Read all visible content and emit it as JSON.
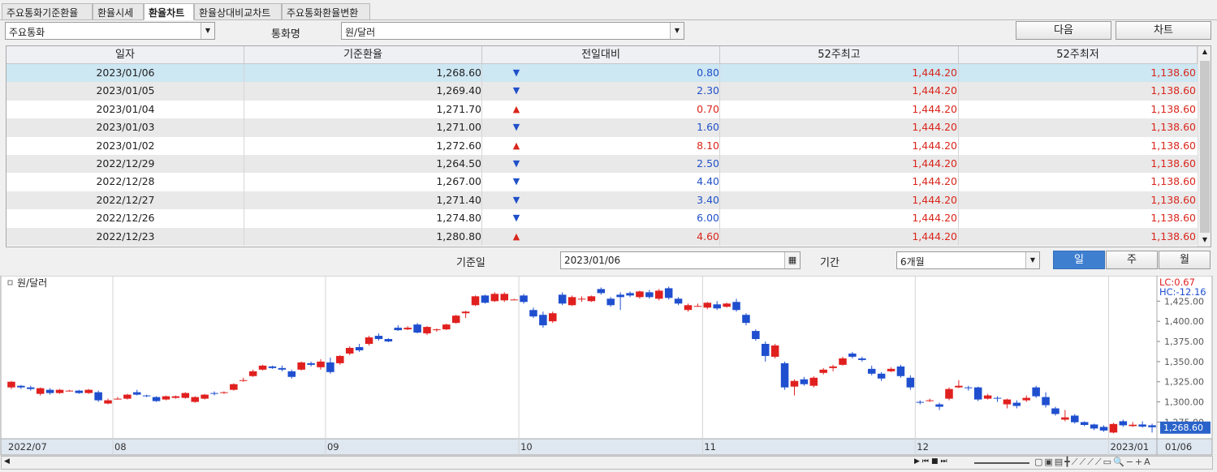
{
  "tabs": [
    "주요통화기준환율",
    "환율시세",
    "환율차트",
    "환율상대비교차트",
    "주요통화환율변환"
  ],
  "active_tab": 2,
  "toolbar": {
    "group": "주요통화",
    "currency_label": "통화명",
    "currency": "원/달러",
    "next_button": "다음",
    "chart_button": "차트"
  },
  "table": {
    "columns": [
      "일자",
      "기준환율",
      "전일대비",
      "52주최고",
      "52주최저"
    ],
    "change_colors": {
      "▲": "#d9261c",
      "▼": "#2050c8"
    },
    "rows": [
      [
        "2023/01/06",
        "1,268.60",
        "▼",
        "0.80",
        "1,444.20",
        "1,138.60"
      ],
      [
        "2023/01/05",
        "1,269.40",
        "▼",
        "2.30",
        "1,444.20",
        "1,138.60"
      ],
      [
        "2023/01/04",
        "1,271.70",
        "▲",
        "0.70",
        "1,444.20",
        "1,138.60"
      ],
      [
        "2023/01/03",
        "1,271.00",
        "▼",
        "1.60",
        "1,444.20",
        "1,138.60"
      ],
      [
        "2023/01/02",
        "1,272.60",
        "▲",
        "8.10",
        "1,444.20",
        "1,138.60"
      ],
      [
        "2022/12/29",
        "1,264.50",
        "▼",
        "2.50",
        "1,444.20",
        "1,138.60"
      ],
      [
        "2022/12/28",
        "1,267.00",
        "▼",
        "4.40",
        "1,444.20",
        "1,138.60"
      ],
      [
        "2022/12/27",
        "1,271.40",
        "▼",
        "3.40",
        "1,444.20",
        "1,138.60"
      ],
      [
        "2022/12/26",
        "1,274.80",
        "▼",
        "6.00",
        "1,444.20",
        "1,138.60"
      ],
      [
        "2022/12/23",
        "1,280.80",
        "▲",
        "4.60",
        "1,444.20",
        "1,138.60"
      ]
    ]
  },
  "form": {
    "date_label": "기준일",
    "date": "2023/01/06",
    "period_label": "기간",
    "period": "6개월",
    "buttons": [
      "일",
      "주",
      "월"
    ],
    "active_button": 0
  },
  "chart_data": {
    "type": "candlestick",
    "categories": [
      "2022/07",
      null,
      null,
      null,
      null,
      null,
      null,
      null,
      null,
      null,
      null,
      "08",
      null,
      null,
      null,
      null,
      null,
      null,
      null,
      null,
      null,
      null,
      null,
      null,
      null,
      null,
      null,
      null,
      null,
      null,
      null,
      null,
      null,
      "09",
      null,
      null,
      null,
      null,
      null,
      null,
      null,
      null,
      null,
      null,
      null,
      null,
      null,
      null,
      null,
      null,
      null,
      null,
      null,
      "10",
      null,
      null,
      null,
      null,
      null,
      null,
      null,
      null,
      null,
      null,
      null,
      null,
      null,
      null,
      null,
      null,
      null,
      null,
      "11",
      null,
      null,
      null,
      null,
      null,
      null,
      null,
      null,
      null,
      null,
      null,
      null,
      null,
      null,
      null,
      null,
      null,
      null,
      null,
      null,
      null,
      "12",
      null,
      null,
      null,
      null,
      null,
      null,
      null,
      null,
      null,
      null,
      null,
      null,
      null,
      null,
      null,
      null,
      null,
      null,
      null,
      "2023/01",
      null,
      null,
      null,
      "01/06"
    ],
    "series": [
      {
        "name": "원/달러",
        "up_color": "#e0201f",
        "down_color": "#1f4fcf",
        "open": [
          1318,
          1320,
          1318,
          1310,
          1315,
          1311,
          1314,
          1314,
          1311,
          1312,
          1298,
          1304,
          1304,
          1312,
          1308,
          1306,
          1303,
          1305,
          1305,
          1300,
          1304,
          1311,
          1311,
          1315,
          1326,
          1332,
          1340,
          1344,
          1342,
          1338,
          1340,
          1348,
          1343,
          1349,
          1348,
          1360,
          1368,
          1372,
          1382,
          1378,
          1392,
          1390,
          1396,
          1385,
          1389,
          1390,
          1398,
          1410,
          1420,
          1432,
          1425,
          1426,
          1427,
          1432,
          1414,
          1408,
          1400,
          1433,
          1420,
          1427,
          1425,
          1440,
          1428,
          1433,
          1435,
          1430,
          1436,
          1428,
          1441,
          1428,
          1414,
          1418,
          1417,
          1421,
          1418,
          1424,
          1408,
          1388,
          1372,
          1356,
          1348,
          1319,
          1328,
          1320,
          1336,
          1342,
          1346,
          1360,
          1354,
          1341,
          1335,
          1338,
          1344,
          1330,
          1300,
          1301,
          1297,
          1304,
          1318,
          1318,
          1318,
          1304,
          1305,
          1297,
          1299,
          1302,
          1318,
          1306,
          1292,
          1278,
          1283,
          1275,
          1272,
          1269,
          1262,
          1276,
          1270,
          1272,
          1271
        ],
        "high": [
          1326,
          1321,
          1320,
          1318,
          1317,
          1316,
          1315,
          1315,
          1316,
          1314,
          1304,
          1306,
          1310,
          1315,
          1309,
          1307,
          1308,
          1308,
          1312,
          1307,
          1310,
          1313,
          1313,
          1323,
          1330,
          1340,
          1346,
          1345,
          1345,
          1340,
          1350,
          1350,
          1353,
          1355,
          1358,
          1369,
          1372,
          1382,
          1385,
          1379,
          1395,
          1394,
          1398,
          1394,
          1391,
          1397,
          1408,
          1413,
          1432,
          1433,
          1436,
          1436,
          1428,
          1434,
          1417,
          1412,
          1412,
          1436,
          1432,
          1431,
          1432,
          1442,
          1430,
          1436,
          1437,
          1438,
          1439,
          1440,
          1443,
          1430,
          1422,
          1422,
          1424,
          1425,
          1423,
          1428,
          1410,
          1390,
          1375,
          1372,
          1350,
          1328,
          1331,
          1332,
          1342,
          1346,
          1356,
          1362,
          1356,
          1345,
          1337,
          1343,
          1346,
          1333,
          1302,
          1304,
          1299,
          1318,
          1327,
          1320,
          1319,
          1310,
          1307,
          1304,
          1302,
          1308,
          1320,
          1312,
          1294,
          1290,
          1285,
          1276,
          1273,
          1271,
          1274,
          1278,
          1275,
          1276,
          1273
        ],
        "low": [
          1316,
          1316,
          1314,
          1308,
          1309,
          1310,
          1313,
          1310,
          1310,
          1300,
          1297,
          1303,
          1303,
          1308,
          1306,
          1300,
          1302,
          1304,
          1304,
          1299,
          1303,
          1308,
          1310,
          1314,
          1325,
          1331,
          1339,
          1341,
          1338,
          1329,
          1339,
          1344,
          1340,
          1335,
          1346,
          1358,
          1362,
          1370,
          1376,
          1374,
          1388,
          1389,
          1385,
          1383,
          1387,
          1389,
          1397,
          1404,
          1419,
          1422,
          1424,
          1424,
          1427,
          1422,
          1404,
          1392,
          1398,
          1420,
          1419,
          1424,
          1424,
          1433,
          1418,
          1414,
          1430,
          1428,
          1428,
          1426,
          1427,
          1420,
          1412,
          1418,
          1415,
          1414,
          1417,
          1412,
          1395,
          1376,
          1350,
          1354,
          1315,
          1308,
          1320,
          1318,
          1334,
          1338,
          1345,
          1354,
          1350,
          1333,
          1326,
          1337,
          1330,
          1315,
          1297,
          1300,
          1290,
          1302,
          1317,
          1314,
          1301,
          1303,
          1300,
          1292,
          1292,
          1300,
          1305,
          1293,
          1283,
          1276,
          1273,
          1270,
          1265,
          1263,
          1261,
          1269,
          1269,
          1268,
          1262
        ],
        "close": [
          1325,
          1318,
          1316,
          1317,
          1311,
          1315,
          1314,
          1311,
          1315,
          1302,
          1302,
          1304,
          1309,
          1309,
          1307,
          1301,
          1307,
          1307,
          1311,
          1306,
          1309,
          1310,
          1312,
          1322,
          1327,
          1338,
          1345,
          1342,
          1340,
          1331,
          1349,
          1346,
          1350,
          1337,
          1357,
          1367,
          1364,
          1380,
          1378,
          1375,
          1389,
          1392,
          1386,
          1393,
          1390,
          1396,
          1407,
          1412,
          1431,
          1423,
          1434,
          1434,
          1427,
          1424,
          1406,
          1395,
          1410,
          1422,
          1430,
          1428,
          1431,
          1435,
          1420,
          1430,
          1432,
          1437,
          1430,
          1438,
          1429,
          1422,
          1420,
          1419,
          1423,
          1416,
          1422,
          1414,
          1398,
          1378,
          1357,
          1370,
          1318,
          1326,
          1322,
          1330,
          1340,
          1344,
          1354,
          1356,
          1352,
          1335,
          1329,
          1341,
          1332,
          1318,
          1299,
          1302,
          1294,
          1316,
          1320,
          1317,
          1303,
          1308,
          1304,
          1303,
          1295,
          1305,
          1307,
          1296,
          1285,
          1280.8,
          1274.8,
          1271.4,
          1267.0,
          1264.5,
          1272.6,
          1271.0,
          1271.7,
          1269.4,
          1268.6
        ]
      }
    ],
    "ylim": [
      1254.3,
      1455.5
    ],
    "yticks": [
      {
        "value": 1275,
        "label": "1,275.00"
      },
      {
        "value": 1300,
        "label": "1,300.00"
      },
      {
        "value": 1325,
        "label": "1,325.00"
      },
      {
        "value": 1350,
        "label": "1,350.00"
      },
      {
        "value": 1375,
        "label": "1,375.00"
      },
      {
        "value": 1400,
        "label": "1,400.00"
      },
      {
        "value": 1425,
        "label": "1,425.00"
      }
    ],
    "lc_label": "LC:0.67",
    "hc_label": "HC:-12.16",
    "last_price_label": "1,268.60",
    "grid": true
  }
}
